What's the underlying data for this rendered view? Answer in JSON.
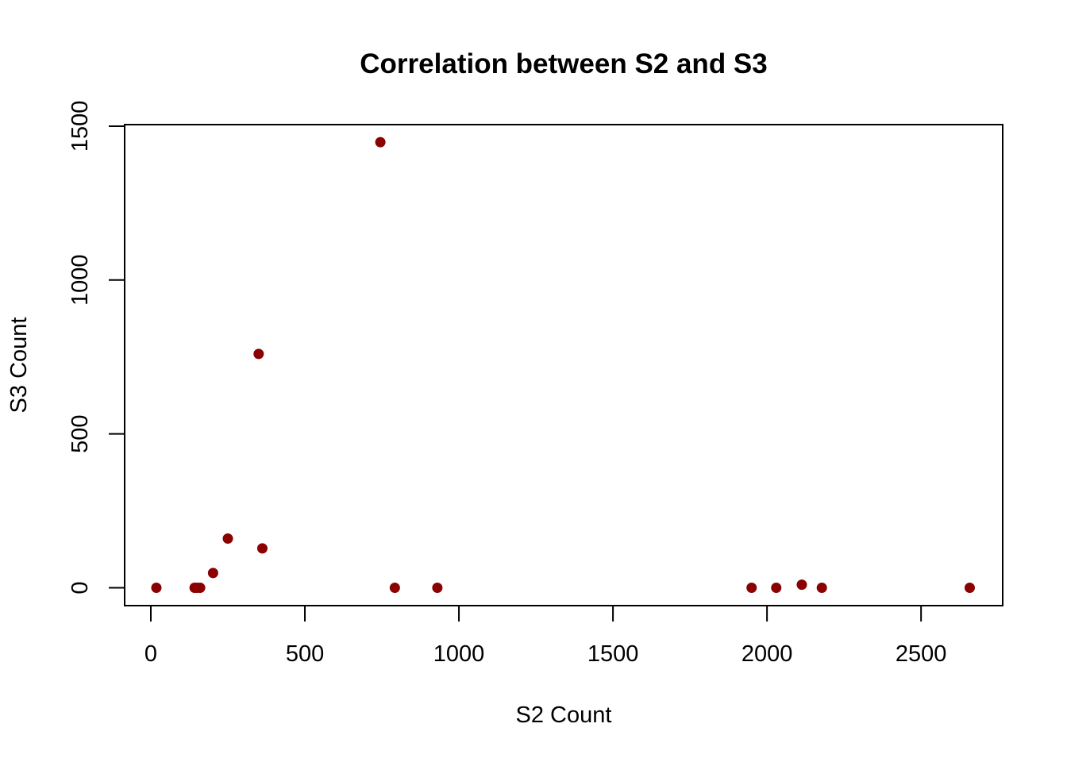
{
  "chart_data": {
    "type": "scatter",
    "title": "Correlation between S2 and S3",
    "xlabel": "S2 Count",
    "ylabel": "S3 Count",
    "xlim": [
      -85,
      2765
    ],
    "ylim": [
      -58,
      1505
    ],
    "xticks": [
      0,
      500,
      1000,
      1500,
      2000,
      2500
    ],
    "yticks": [
      0,
      500,
      1000,
      1500
    ],
    "xtick_labels": [
      "0",
      "500",
      "1000",
      "1500",
      "2000",
      "2500"
    ],
    "ytick_labels": [
      "0",
      "500",
      "1000",
      "1500"
    ],
    "marker_color": "#8B0000",
    "grid": false,
    "legend": "none",
    "points": [
      {
        "x": 18,
        "y": 0
      },
      {
        "x": 142,
        "y": 0
      },
      {
        "x": 150,
        "y": 0
      },
      {
        "x": 160,
        "y": 0
      },
      {
        "x": 202,
        "y": 48
      },
      {
        "x": 250,
        "y": 160
      },
      {
        "x": 350,
        "y": 760
      },
      {
        "x": 362,
        "y": 128
      },
      {
        "x": 745,
        "y": 1448
      },
      {
        "x": 792,
        "y": 0
      },
      {
        "x": 930,
        "y": 0
      },
      {
        "x": 1950,
        "y": 0
      },
      {
        "x": 2030,
        "y": 0
      },
      {
        "x": 2113,
        "y": 10
      },
      {
        "x": 2178,
        "y": 0
      },
      {
        "x": 2658,
        "y": 0
      }
    ]
  }
}
